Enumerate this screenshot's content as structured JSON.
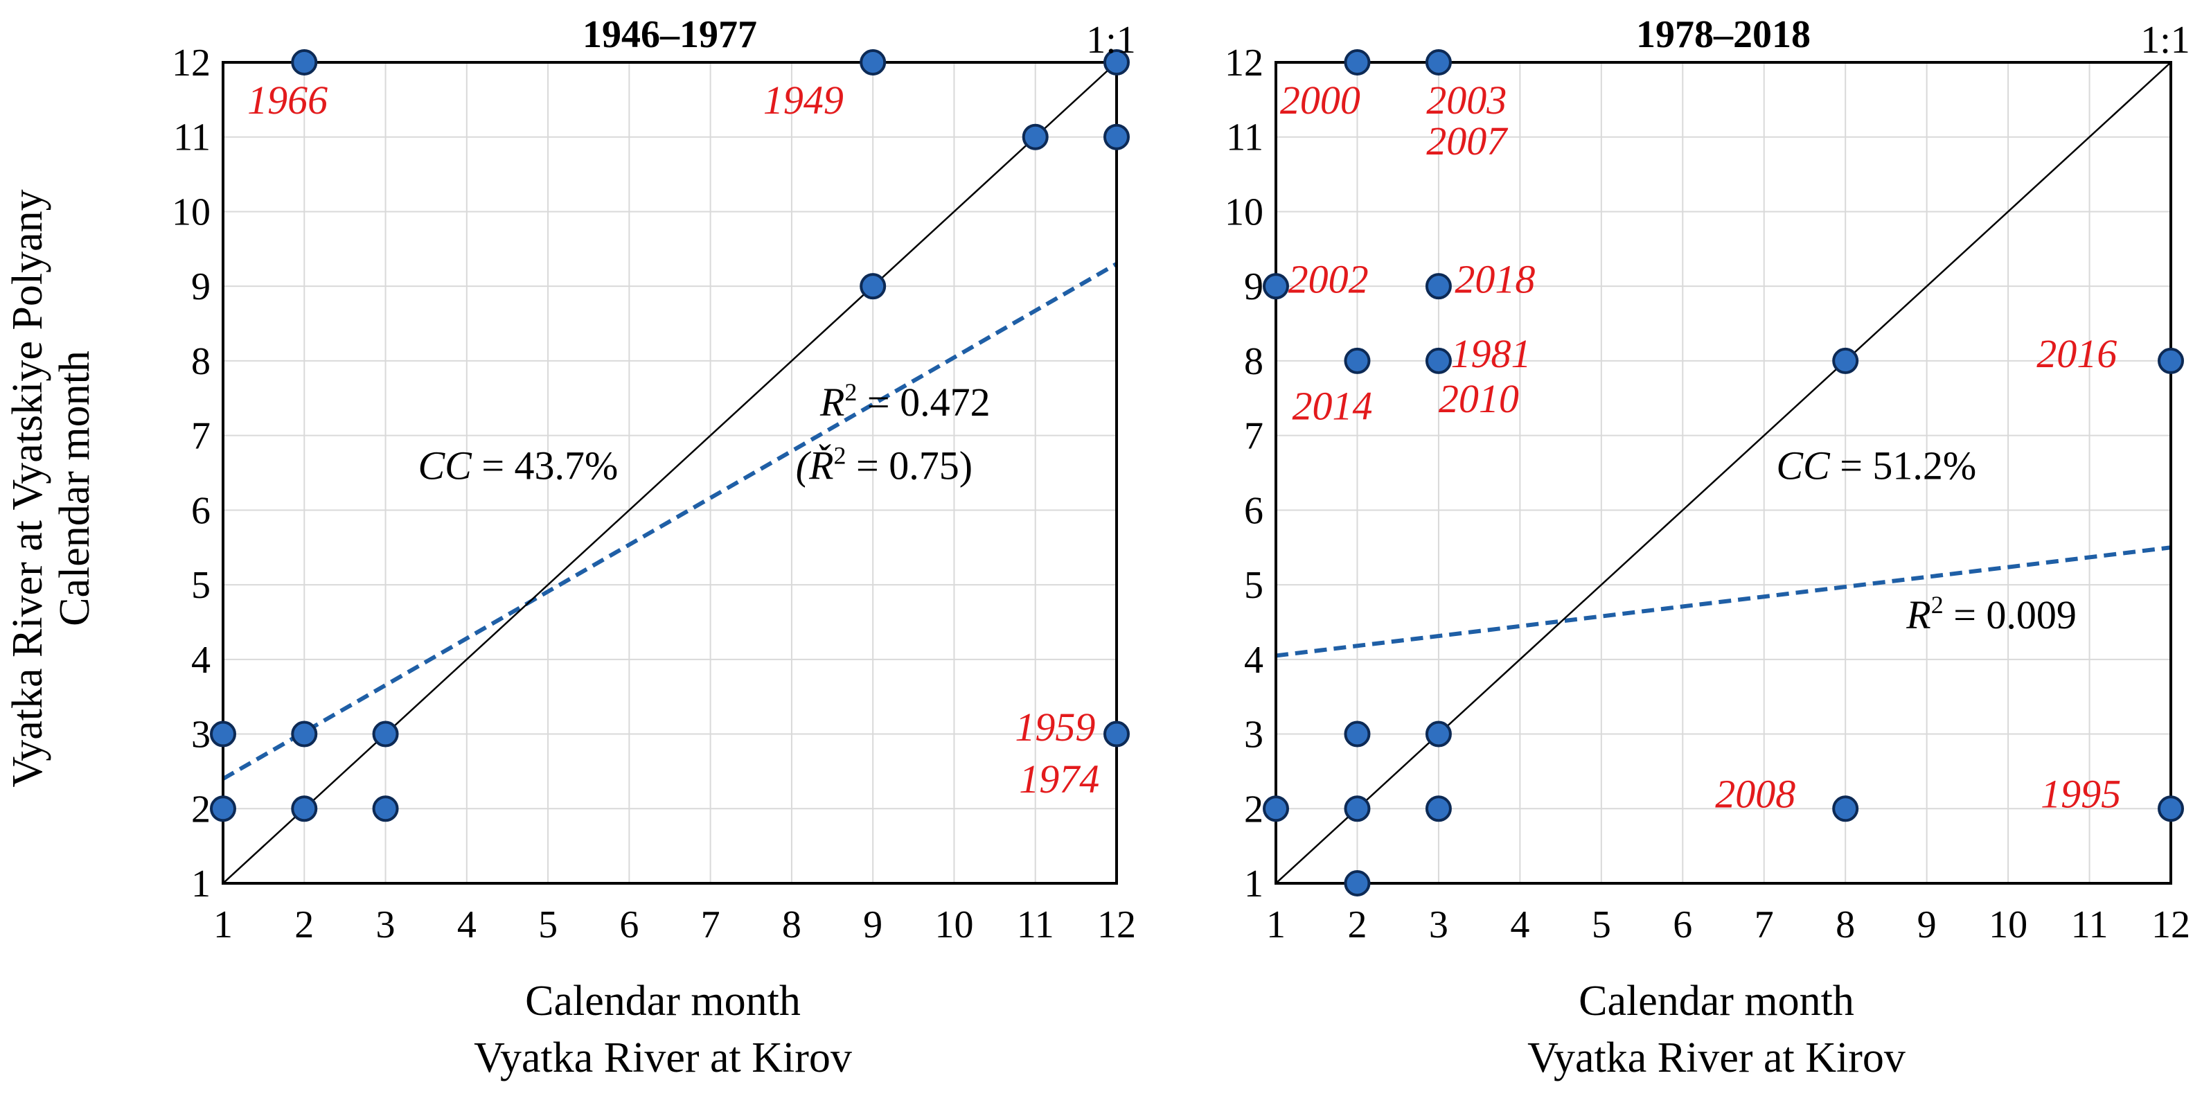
{
  "figure": {
    "ylabel_lines": [
      "Vyatka River at Vyatskiye Polyany",
      "Calendar month"
    ],
    "xlabel_lines": [
      "Calendar month",
      "Vyatka River at Kirov"
    ]
  },
  "chart_data": [
    {
      "type": "scatter",
      "title": "1946–1977",
      "xlabel": "Calendar month / Vyatka River at Kirov",
      "ylabel": "Vyatka River at Vyatskiye Polyany / Calendar month",
      "x_ticks": [
        1,
        2,
        3,
        4,
        5,
        6,
        7,
        8,
        9,
        10,
        11,
        12
      ],
      "y_ticks": [
        1,
        2,
        3,
        4,
        5,
        6,
        7,
        8,
        9,
        10,
        11,
        12
      ],
      "xlim": [
        1,
        12
      ],
      "ylim": [
        1,
        12
      ],
      "grid": true,
      "reference_line_label": "1:1",
      "points": [
        {
          "x": 1,
          "y": 3
        },
        {
          "x": 1,
          "y": 2
        },
        {
          "x": 2,
          "y": 12
        },
        {
          "x": 2,
          "y": 3
        },
        {
          "x": 2,
          "y": 2
        },
        {
          "x": 3,
          "y": 3
        },
        {
          "x": 3,
          "y": 2
        },
        {
          "x": 9,
          "y": 12
        },
        {
          "x": 9,
          "y": 9
        },
        {
          "x": 11,
          "y": 11
        },
        {
          "x": 12,
          "y": 12
        },
        {
          "x": 12,
          "y": 11
        },
        {
          "x": 12,
          "y": 3
        }
      ],
      "trendline": {
        "x": [
          1,
          12
        ],
        "y": [
          2.4,
          9.3
        ]
      },
      "annotations": [
        {
          "text": "1966",
          "x": 1.3,
          "y": 11.5
        },
        {
          "text": "1949",
          "x": 7.65,
          "y": 11.5
        },
        {
          "text": "1959",
          "x": 10.75,
          "y": 3.1
        },
        {
          "text": "1974",
          "x": 10.8,
          "y": 2.4
        }
      ],
      "stats": [
        {
          "prefix": "CC",
          "text": " = 43.7%",
          "x": 3.4,
          "y": 6.6
        },
        {
          "prefix": "R",
          "sup": "2",
          "text": " = 0.472",
          "x": 8.35,
          "y": 7.45
        },
        {
          "prefix": "(Ř",
          "sup": "2",
          "text": " = 0.75)",
          "x": 8.05,
          "y": 6.6
        }
      ]
    },
    {
      "type": "scatter",
      "title": "1978–2018",
      "xlabel": "Calendar month / Vyatka River at Kirov",
      "ylabel": "",
      "x_ticks": [
        1,
        2,
        3,
        4,
        5,
        6,
        7,
        8,
        9,
        10,
        11,
        12
      ],
      "y_ticks": [
        1,
        2,
        3,
        4,
        5,
        6,
        7,
        8,
        9,
        10,
        11,
        12
      ],
      "xlim": [
        1,
        12
      ],
      "ylim": [
        1,
        12
      ],
      "grid": true,
      "reference_line_label": "1:1",
      "points": [
        {
          "x": 2,
          "y": 12
        },
        {
          "x": 3,
          "y": 12
        },
        {
          "x": 1,
          "y": 9
        },
        {
          "x": 3,
          "y": 9
        },
        {
          "x": 2,
          "y": 8
        },
        {
          "x": 3,
          "y": 8
        },
        {
          "x": 8,
          "y": 8
        },
        {
          "x": 12,
          "y": 8
        },
        {
          "x": 2,
          "y": 3
        },
        {
          "x": 3,
          "y": 3
        },
        {
          "x": 1,
          "y": 2
        },
        {
          "x": 2,
          "y": 2
        },
        {
          "x": 3,
          "y": 2
        },
        {
          "x": 8,
          "y": 2
        },
        {
          "x": 12,
          "y": 2
        },
        {
          "x": 2,
          "y": 1
        }
      ],
      "trendline": {
        "x": [
          1,
          12
        ],
        "y": [
          4.05,
          5.5
        ]
      },
      "annotations": [
        {
          "text": "2000",
          "x": 1.05,
          "y": 11.5
        },
        {
          "text": "2003",
          "x": 2.85,
          "y": 11.5
        },
        {
          "text": "2007",
          "x": 2.85,
          "y": 10.95
        },
        {
          "text": "2002",
          "x": 1.15,
          "y": 9.1
        },
        {
          "text": "2018",
          "x": 3.2,
          "y": 9.1
        },
        {
          "text": "1981",
          "x": 3.15,
          "y": 8.1
        },
        {
          "text": "2014",
          "x": 1.2,
          "y": 7.4
        },
        {
          "text": "2010",
          "x": 3.0,
          "y": 7.5
        },
        {
          "text": "2016",
          "x": 10.35,
          "y": 8.1
        },
        {
          "text": "2008",
          "x": 6.4,
          "y": 2.2
        },
        {
          "text": "1995",
          "x": 10.4,
          "y": 2.2
        }
      ],
      "stats": [
        {
          "prefix": "CC",
          "text": " = 51.2%",
          "x": 7.15,
          "y": 6.6
        },
        {
          "prefix": "R",
          "sup": "2",
          "text": " = 0.009",
          "x": 8.75,
          "y": 4.6
        }
      ]
    }
  ]
}
